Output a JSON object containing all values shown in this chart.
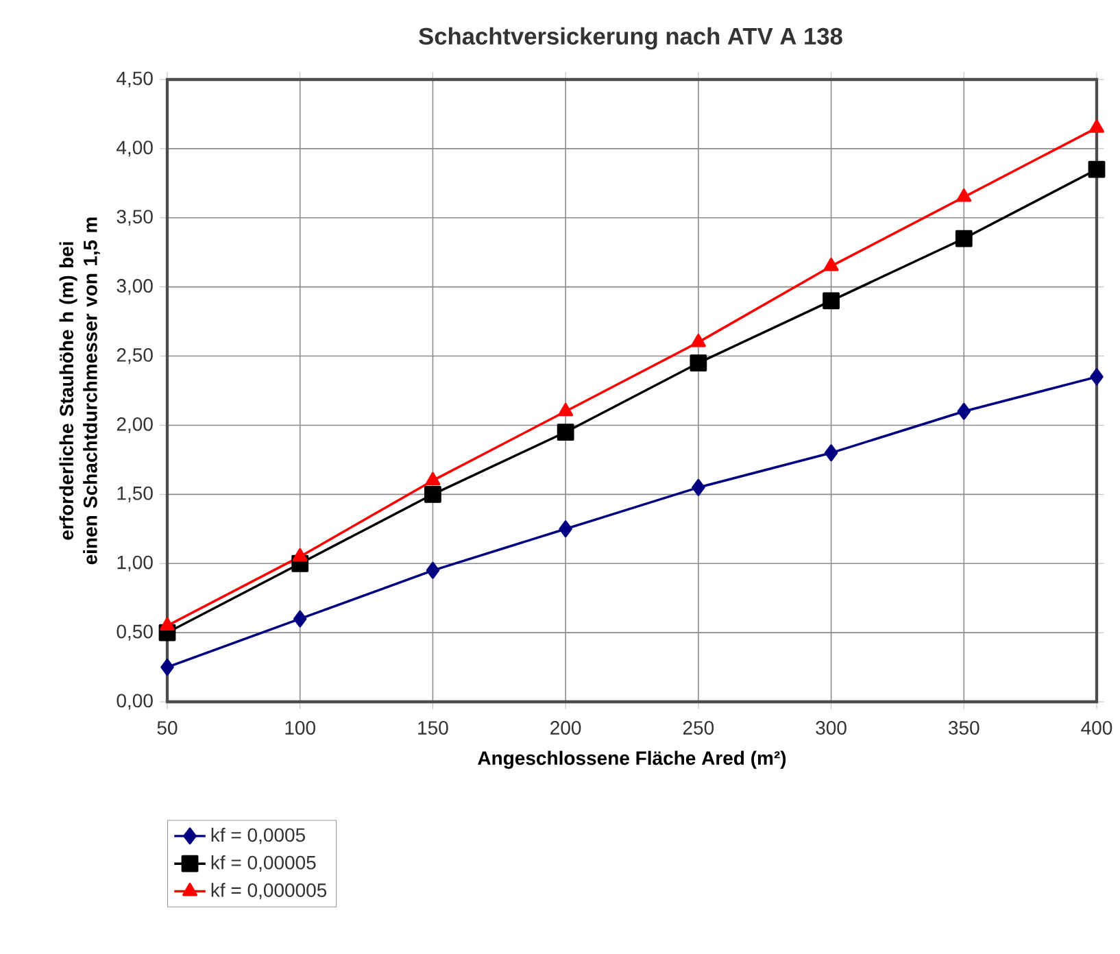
{
  "chart_data": {
    "type": "line",
    "title": "Schachtversickerung nach ATV A 138",
    "xlabel": "Angeschlossene Fläche Ared (m²)",
    "ylabel": "erforderliche Stauhöhe h (m) bei einen Schachtdurchmesser von 1,5 m",
    "x": [
      50,
      100,
      150,
      200,
      250,
      300,
      350,
      400
    ],
    "series": [
      {
        "name": "kf = 0,0005",
        "color": "#000080",
        "marker": "diamond",
        "values": [
          0.25,
          0.6,
          0.95,
          1.25,
          1.55,
          1.8,
          2.1,
          2.35
        ]
      },
      {
        "name": "kf = 0,00005",
        "color": "#000000",
        "marker": "square",
        "values": [
          0.5,
          1.0,
          1.5,
          1.95,
          2.45,
          2.9,
          3.35,
          3.85
        ]
      },
      {
        "name": "kf = 0,000005",
        "color": "#ff0000",
        "marker": "triangle",
        "values": [
          0.55,
          1.05,
          1.6,
          2.1,
          2.6,
          3.15,
          3.65,
          4.15
        ]
      }
    ],
    "xlim": [
      50,
      400
    ],
    "xticks": [
      50,
      100,
      150,
      200,
      250,
      300,
      350,
      400
    ],
    "ylim": [
      0,
      4.5
    ],
    "yticks": [
      {
        "value": 0,
        "label": "0,00"
      },
      {
        "value": 0.5,
        "label": "0,50"
      },
      {
        "value": 1,
        "label": "1,00"
      },
      {
        "value": 1.5,
        "label": "1,50"
      },
      {
        "value": 2,
        "label": "2,00"
      },
      {
        "value": 2.5,
        "label": "2,50"
      },
      {
        "value": 3,
        "label": "3,00"
      },
      {
        "value": 3.5,
        "label": "3,50"
      },
      {
        "value": 4,
        "label": "4,00"
      },
      {
        "value": 4.5,
        "label": "4,50"
      }
    ],
    "grid": true,
    "legend": "bottom left",
    "line_style": "solid"
  }
}
